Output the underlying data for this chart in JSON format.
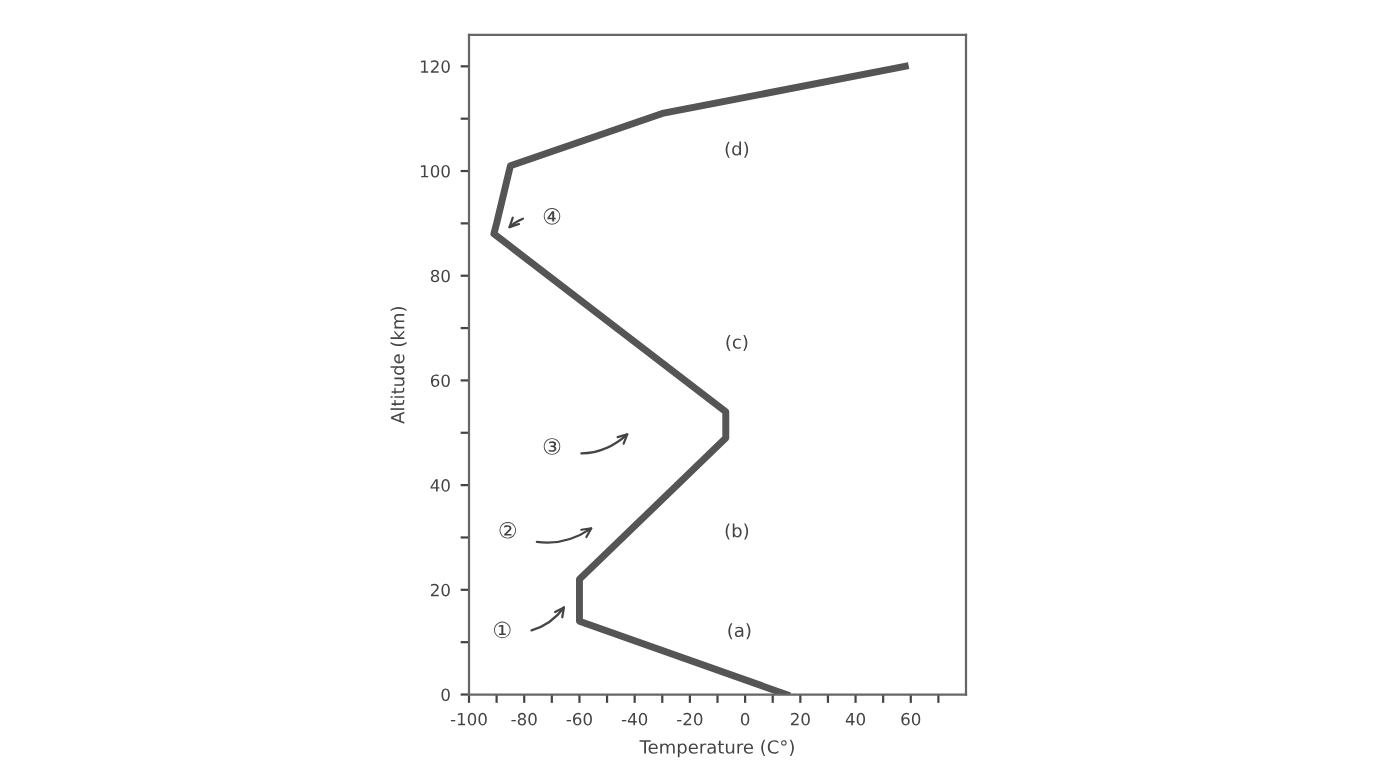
{
  "chart_data": {
    "type": "line",
    "xlabel": "Temperature (C°)",
    "ylabel": "Altitude (km)",
    "x": [
      15,
      -60,
      -60,
      -7,
      -7,
      -91,
      -90,
      -85,
      -30,
      58
    ],
    "series": [
      {
        "color": "#555555",
        "values": [
          0,
          14,
          22,
          49,
          54,
          88,
          90,
          101,
          111,
          120
        ]
      }
    ],
    "xlim": [
      -100,
      80
    ],
    "ylim": [
      0,
      126
    ],
    "xticks": [
      -100,
      {
        "value": -90,
        "label": null
      },
      -80,
      {
        "value": -70,
        "label": null
      },
      -60,
      {
        "value": -50,
        "label": null
      },
      -40,
      {
        "value": -30,
        "label": null
      },
      -20,
      {
        "value": -10,
        "label": null
      },
      0,
      {
        "value": 10,
        "label": null
      },
      20,
      {
        "value": 30,
        "label": null
      },
      40,
      {
        "value": 50,
        "label": null
      },
      60,
      {
        "value": 70,
        "label": null
      }
    ],
    "yticks": [
      0,
      {
        "value": 10,
        "label": null
      },
      20,
      {
        "value": 30,
        "label": null
      },
      40,
      {
        "value": 50,
        "label": null
      },
      60,
      {
        "value": 70,
        "label": null
      },
      80,
      {
        "value": 90,
        "label": null
      },
      100,
      {
        "value": 110,
        "label": null
      },
      120
    ],
    "annotations": [
      "(a)",
      "(b)",
      "(c)",
      "(d)",
      "①",
      "②",
      "③",
      "④"
    ]
  }
}
